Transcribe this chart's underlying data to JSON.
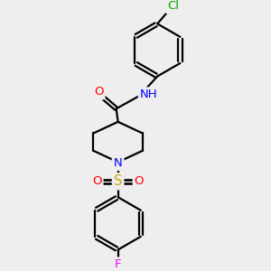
{
  "bg_color": "#eeeeee",
  "bond_color": "#000000",
  "line_width": 1.6,
  "atom_colors": {
    "O": "#ff0000",
    "N": "#0000ff",
    "H": "#008080",
    "S": "#ccaa00",
    "Cl": "#00aa00",
    "F": "#ff00ff"
  },
  "font_size": 9.5
}
